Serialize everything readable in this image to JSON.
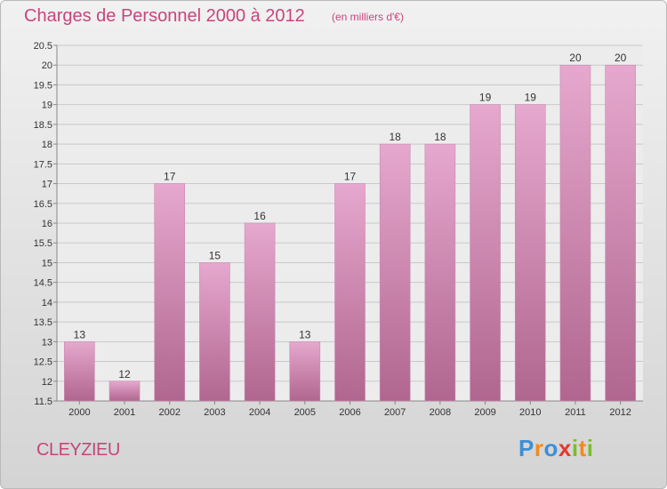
{
  "header": {
    "title": "Charges de Personnel 2000 à 2012",
    "unit": "(en milliers d'€)"
  },
  "commune": "CLEYZIEU",
  "brand": {
    "text": "Proxiti",
    "letters": [
      {
        "ch": "P",
        "color": "#3e8fd6"
      },
      {
        "ch": "r",
        "color": "#f08a1c"
      },
      {
        "ch": "o",
        "color": "#3e8fd6"
      },
      {
        "ch": "x",
        "color": "#e23a2e"
      },
      {
        "ch": "i",
        "color": "#7bbd2c"
      },
      {
        "ch": "t",
        "color": "#f08a1c"
      },
      {
        "ch": "i",
        "color": "#7bbd2c"
      }
    ]
  },
  "colors": {
    "accent": "#c7457c",
    "bar_top": "#e6a8ce",
    "bar_bottom": "#b0668f"
  },
  "chart_data": {
    "type": "bar",
    "title": "Charges de Personnel 2000 à 2012",
    "subtitle": "(en milliers d'€)",
    "categories": [
      "2000",
      "2001",
      "2002",
      "2003",
      "2004",
      "2005",
      "2006",
      "2007",
      "2008",
      "2009",
      "2010",
      "2011",
      "2012"
    ],
    "values": [
      13,
      12,
      17,
      15,
      16,
      13,
      17,
      18,
      18,
      19,
      19,
      20,
      20
    ],
    "data_labels": [
      "13",
      "12",
      "17",
      "15",
      "16",
      "13",
      "17",
      "18",
      "18",
      "19",
      "19",
      "20",
      "20"
    ],
    "ylim": [
      11.5,
      20.5
    ],
    "yticks": [
      "11.5",
      "12",
      "12.5",
      "13",
      "13.5",
      "14",
      "14.5",
      "15",
      "15.5",
      "16",
      "16.5",
      "17",
      "17.5",
      "18",
      "18.5",
      "19",
      "19.5",
      "20",
      "20.5"
    ],
    "grid": true,
    "xlabel": "",
    "ylabel": ""
  }
}
